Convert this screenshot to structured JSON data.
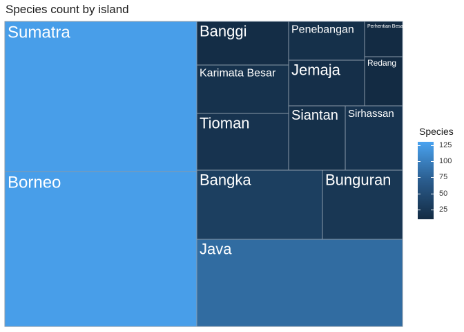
{
  "chart_data": {
    "type": "treemap",
    "title": "Species count by island",
    "color_scale": {
      "title": "Species",
      "ticks": [
        125,
        100,
        75,
        50,
        25
      ],
      "low_color": "#132b43",
      "high_color": "#56b1f7",
      "range": [
        10,
        130
      ]
    },
    "tiles": [
      {
        "name": "Sumatra",
        "value": 125
      },
      {
        "name": "Borneo",
        "value": 125
      },
      {
        "name": "Banggi",
        "value": 12
      },
      {
        "name": "Karimata Besar",
        "value": 17
      },
      {
        "name": "Tioman",
        "value": 18
      },
      {
        "name": "Penebangan",
        "value": 15
      },
      {
        "name": "Perhentian Besar",
        "value": 10
      },
      {
        "name": "Jemaja",
        "value": 14
      },
      {
        "name": "Redang",
        "value": 10
      },
      {
        "name": "Siantan",
        "value": 15
      },
      {
        "name": "Sirhassan",
        "value": 18
      },
      {
        "name": "Bangka",
        "value": 30
      },
      {
        "name": "Bunguran",
        "value": 22
      },
      {
        "name": "Java",
        "value": 75
      }
    ]
  }
}
